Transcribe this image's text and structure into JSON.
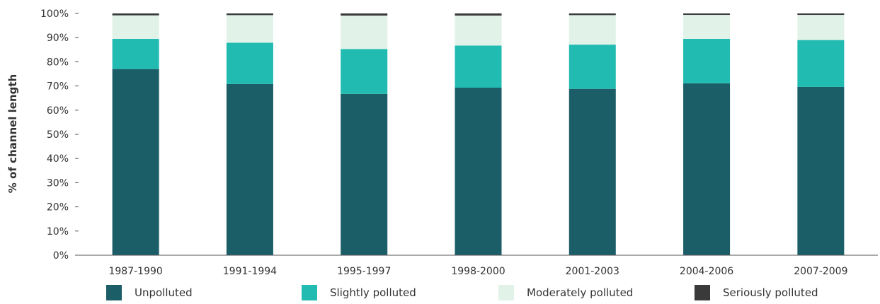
{
  "chart_data": {
    "type": "bar",
    "stacked": true,
    "ylabel": "% of channel length",
    "xlabel": "",
    "ylim": [
      0,
      100
    ],
    "yticks": [
      "0%",
      "10%",
      "20%",
      "30%",
      "40%",
      "50%",
      "60%",
      "70%",
      "80%",
      "90%",
      "100%"
    ],
    "grid": false,
    "legend_position": "bottom",
    "categories": [
      "1987-1990",
      "1991-1994",
      "1995-1997",
      "1998-2000",
      "2001-2003",
      "2004-2006",
      "2007-2009"
    ],
    "series": [
      {
        "name": "Unpolluted",
        "color": "#1c5e67",
        "values": [
          77,
          70.8,
          66.7,
          69.3,
          68.8,
          71.1,
          69.6
        ]
      },
      {
        "name": "Slightly polluted",
        "color": "#21bbb2",
        "values": [
          12.5,
          17.1,
          18.6,
          17.4,
          18.3,
          18.4,
          19.4
        ]
      },
      {
        "name": "Moderately polluted",
        "color": "#e1f3e8",
        "values": [
          9.7,
          11.4,
          13.8,
          12.4,
          12.2,
          9.9,
          10.4
        ]
      },
      {
        "name": "Seriously polluted",
        "color": "#3a3a3a",
        "values": [
          0.8,
          0.7,
          0.9,
          0.9,
          0.7,
          0.6,
          0.6
        ]
      }
    ]
  }
}
